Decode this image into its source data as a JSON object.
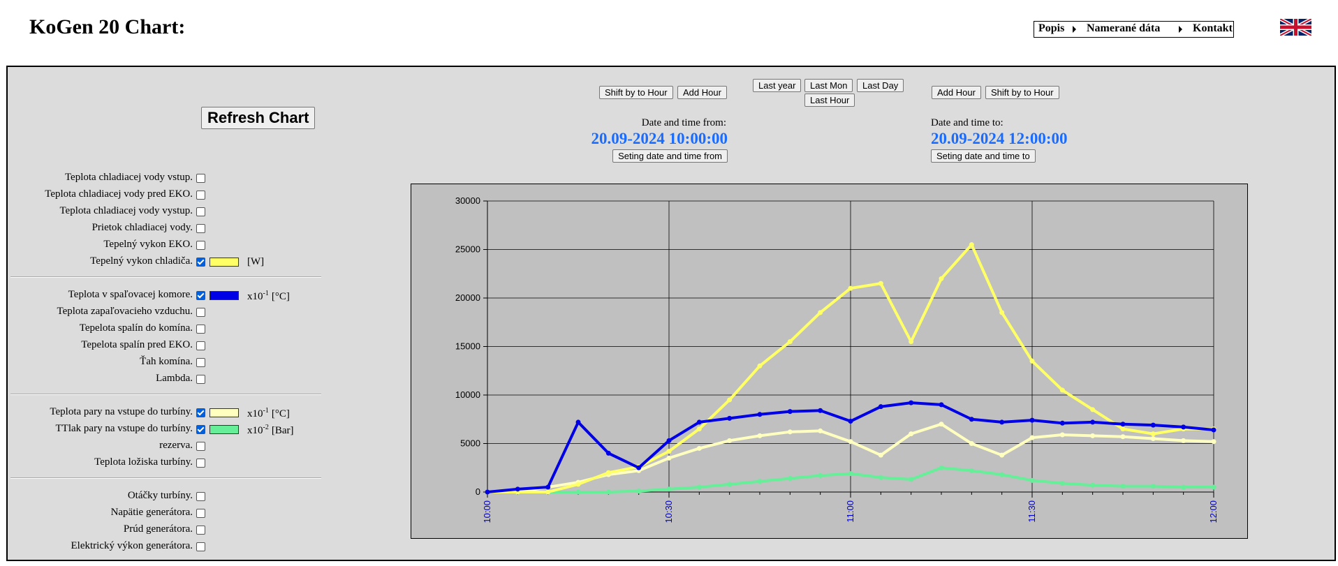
{
  "header": {
    "title": "KoGen 20 Chart:",
    "nav": [
      "Popis",
      "Namerané dáta",
      "Kontakt"
    ]
  },
  "controls": {
    "refresh": "Refresh Chart",
    "from": {
      "buttons": [
        "Shift by to Hour",
        "Add Hour"
      ],
      "label": "Date and time from:",
      "value": "20.09-2024 10:00:00",
      "set": "Seting date and time from"
    },
    "range_buttons": [
      "Last year",
      "Last Mon",
      "Last Day",
      "Last Hour"
    ],
    "to": {
      "buttons": [
        "Add Hour",
        "Shift by to Hour"
      ],
      "label": "Date and time to:",
      "value": "20.09-2024 12:00:00",
      "set": "Seting date and time to"
    }
  },
  "sensors": [
    [
      {
        "label": "Teplota chladiacej vody vstup.",
        "checked": false
      },
      {
        "label": "Teplota chladiacej vody pred EKO.",
        "checked": false
      },
      {
        "label": "Teplota chladiacej vody vystup.",
        "checked": false
      },
      {
        "label": "Prietok chladiacej vody.",
        "checked": false
      },
      {
        "label": "Tepelný vykon EKO.",
        "checked": false
      },
      {
        "label": "Tepelný vykon chladiča.",
        "checked": true,
        "unit": "[W]"
      }
    ],
    [
      {
        "label": "Teplota v spaľovacej komore.",
        "checked": true,
        "unit_scale": "x10",
        "unit_exp": "-1",
        "unit": "[°C]"
      },
      {
        "label": "Teplota zapaľovacieho vzduchu.",
        "checked": false
      },
      {
        "label": "Tepelota spalín do komína.",
        "checked": false
      },
      {
        "label": "Tepelota spalín pred EKO.",
        "checked": false
      },
      {
        "label": "Ťah komína.",
        "checked": false
      },
      {
        "label": "Lambda.",
        "checked": false
      }
    ],
    [
      {
        "label": "Teplota pary na vstupe do turbíny.",
        "checked": true,
        "unit_scale": "x10",
        "unit_exp": "-1",
        "unit": "[°C]"
      },
      {
        "label": "TTlak pary na vstupe do turbíny.",
        "checked": true,
        "unit_scale": "x10",
        "unit_exp": "-2",
        "unit": "[Bar]"
      },
      {
        "label": "rezerva.",
        "checked": false
      },
      {
        "label": "Teplota ložiska turbíny.",
        "checked": false
      }
    ],
    [
      {
        "label": "Otáčky turbíny.",
        "checked": false
      },
      {
        "label": "Napätie generátora.",
        "checked": false
      },
      {
        "label": "Prúd generátora.",
        "checked": false
      },
      {
        "label": "Elektrický výkon generátora.",
        "checked": false
      }
    ]
  ],
  "chart_data": {
    "type": "scatter",
    "categories": [
      "10:00",
      null,
      null,
      null,
      null,
      null,
      "10:30",
      null,
      null,
      null,
      null,
      null,
      "11:00",
      null,
      null,
      null,
      null,
      null,
      "11:30",
      null,
      null,
      null,
      null,
      null,
      "12:00"
    ],
    "series": [
      {
        "color": "#ffff66",
        "values": [
          0,
          0,
          0,
          800,
          2000,
          2600,
          4200,
          6500,
          9500,
          13000,
          15500,
          18500,
          21000,
          21500,
          15500,
          22000,
          25500,
          18500,
          13500,
          10500,
          8500,
          6500,
          6000,
          6500,
          6500
        ]
      },
      {
        "color": "#0000e6",
        "values": [
          0,
          300,
          500,
          7200,
          4000,
          2500,
          5300,
          7200,
          7600,
          8000,
          8300,
          8400,
          7300,
          8800,
          9200,
          9000,
          7500,
          7200,
          7400,
          7100,
          7200,
          7000,
          6900,
          6700,
          6400
        ]
      },
      {
        "color": "#ffffc0",
        "values": [
          0,
          0,
          500,
          1000,
          1800,
          2200,
          3500,
          4500,
          5300,
          5800,
          6200,
          6300,
          5200,
          3800,
          6000,
          7000,
          5000,
          3800,
          5600,
          5900,
          5800,
          5700,
          5500,
          5300,
          5200
        ]
      },
      {
        "color": "#66ee99",
        "values": [
          0,
          0,
          0,
          0,
          0,
          100,
          300,
          500,
          800,
          1100,
          1400,
          1700,
          1900,
          1500,
          1300,
          2500,
          2200,
          1800,
          1200,
          900,
          700,
          600,
          600,
          500,
          500
        ]
      }
    ],
    "ylim": [
      0,
      30000
    ],
    "yticks": [
      0,
      5000,
      10000,
      15000,
      20000,
      25000,
      30000
    ],
    "grid": true
  }
}
